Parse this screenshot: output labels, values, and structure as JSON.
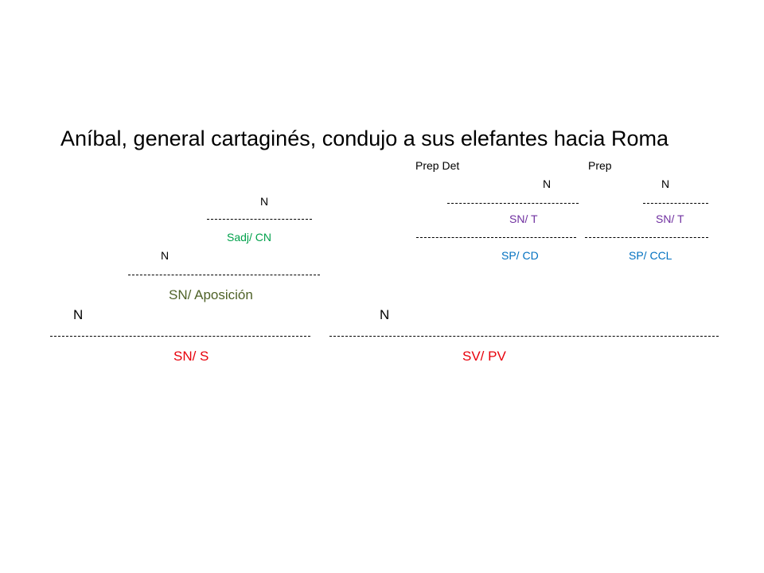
{
  "sentence": "Aníbal, general cartaginés, condujo a sus elefantes hacia Roma",
  "labels": {
    "prep_det": "Prep   Det",
    "prep2": "Prep",
    "n_sus_elefantes": "N",
    "n_roma": "N",
    "n_cartagines": "N",
    "sn_t_1": "SN/ T",
    "sn_t_2": "SN/ T",
    "sadj_cn": "Sadj/ CN",
    "n_general": "N",
    "sp_cd": "SP/ CD",
    "sp_ccl": "SP/ CCL",
    "sn_aposicion": "SN/ Aposición",
    "n_anibal": "N",
    "n_condujo": "N",
    "sn_s": "SN/ S",
    "sv_pv": "SV/ PV"
  },
  "colors": {
    "black": "#000000",
    "green": "#00a14b",
    "olive": "#4f6228",
    "red": "#e8000b",
    "purple": "#7030a0",
    "blue": "#0070c0"
  }
}
